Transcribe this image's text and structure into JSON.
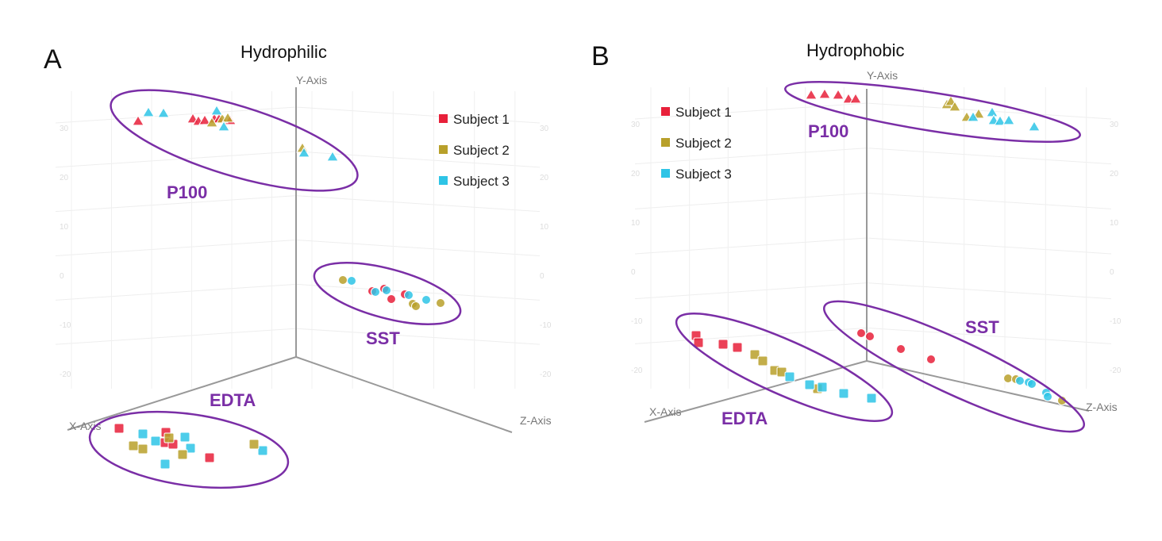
{
  "chart_data": [
    {
      "type": "scatter",
      "panel": "A",
      "title": "Hydrophilic",
      "axes": {
        "x": "X-Axis",
        "y": "Y-Axis",
        "z": "Z-Axis"
      },
      "y_ticks": [
        "30",
        "20",
        "10",
        "0",
        "-10",
        "-20"
      ],
      "legend": {
        "placement": "top-right",
        "entries": [
          "Subject 1",
          "Subject 2",
          "Subject 3"
        ]
      },
      "groups": [
        {
          "label": "P100",
          "marker": "triangle"
        },
        {
          "label": "SST",
          "marker": "circle"
        },
        {
          "label": "EDTA",
          "marker": "square"
        }
      ]
    },
    {
      "type": "scatter",
      "panel": "B",
      "title": "Hydrophobic",
      "axes": {
        "x": "X-Axis",
        "y": "Y-Axis",
        "z": "Z-Axis"
      },
      "y_ticks": [
        "30",
        "20",
        "10",
        "0",
        "-10",
        "-20"
      ],
      "legend": {
        "placement": "top-left",
        "entries": [
          "Subject 1",
          "Subject 2",
          "Subject 3"
        ]
      },
      "groups": [
        {
          "label": "P100",
          "marker": "triangle"
        },
        {
          "label": "SST",
          "marker": "circle"
        },
        {
          "label": "EDTA",
          "marker": "square"
        }
      ]
    }
  ],
  "colors": {
    "Subject 1": "#e8203a",
    "Subject 2": "#b8a02a",
    "Subject 3": "#2ec4e6",
    "ellipse": "#7a2ea6"
  }
}
